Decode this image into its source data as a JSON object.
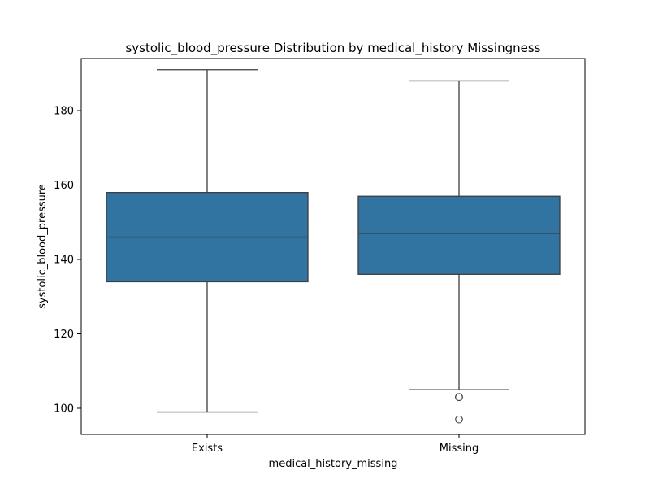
{
  "chart_data": {
    "type": "box",
    "title": "systolic_blood_pressure Distribution by medical_history Missingness",
    "xlabel": "medical_history_missing",
    "ylabel": "systolic_blood_pressure",
    "categories": [
      "Exists",
      "Missing"
    ],
    "ylim": [
      93,
      194
    ],
    "yticks": [
      100,
      120,
      140,
      160,
      180
    ],
    "boxes": [
      {
        "category": "Exists",
        "whisker_low": 99,
        "q1": 134,
        "median": 146,
        "q3": 158,
        "whisker_high": 191,
        "outliers": []
      },
      {
        "category": "Missing",
        "whisker_low": 105,
        "q1": 136,
        "median": 147,
        "q3": 157,
        "whisker_high": 188,
        "outliers": [
          103,
          103,
          97
        ]
      }
    ],
    "colors": {
      "box_fill": "#3274a1",
      "line": "#3d3d3d"
    },
    "grid": false,
    "legend": "none"
  }
}
